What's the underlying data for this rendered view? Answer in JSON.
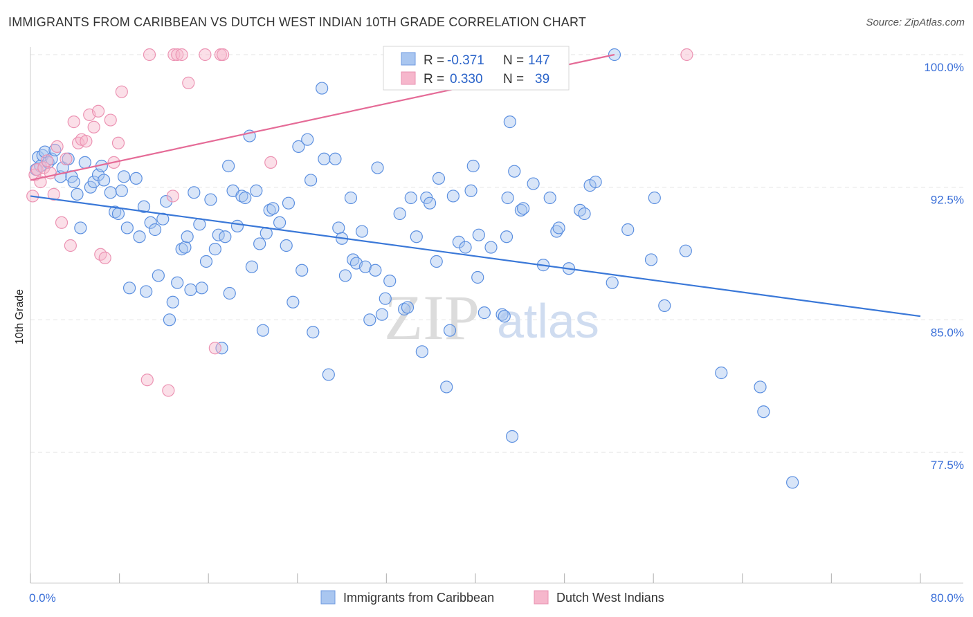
{
  "title": "IMMIGRANTS FROM CARIBBEAN VS DUTCH WEST INDIAN 10TH GRADE CORRELATION CHART",
  "source": "Source: ZipAtlas.com",
  "watermark": {
    "zip": "ZIP",
    "atlas": "atlas"
  },
  "colors": {
    "blue": "#3a78d8",
    "blue_fill": "#a9c6f0",
    "pink": "#e56b97",
    "pink_fill": "#f6b7cc",
    "axis_text": "#3a6fd8",
    "grid": "#e3e3e3"
  },
  "legend": {
    "rows": [
      {
        "r_label": "R = ",
        "r_value": "-0.371",
        "n_label": "N = ",
        "n_value": "147"
      },
      {
        "r_label": "R = ",
        "r_value": "0.330",
        "n_label": "N = ",
        "n_value": "39"
      }
    ]
  },
  "bottom_legend": [
    "Immigrants from Caribbean",
    "Dutch West Indians"
  ],
  "chart_data": {
    "type": "scatter",
    "title": "IMMIGRANTS FROM CARIBBEAN VS DUTCH WEST INDIAN 10TH GRADE CORRELATION CHART",
    "xlabel": "",
    "ylabel": "10th Grade",
    "xlim": [
      0,
      80
    ],
    "ylim": [
      71,
      101.5
    ],
    "x_tick_labels": [
      "0.0%",
      "80.0%"
    ],
    "y_ticks": [
      77.5,
      85.0,
      92.5,
      100.0
    ],
    "y_tick_labels": [
      "77.5%",
      "85.0%",
      "92.5%",
      "100.0%"
    ],
    "grid": "horizontal dashed",
    "legend_position": "top-center",
    "series": [
      {
        "name": "Immigrants from Caribbean",
        "color": "#3a78d8",
        "trend": {
          "x": [
            0,
            80
          ],
          "y": [
            92.0,
            85.2
          ]
        },
        "points": [
          [
            0.5,
            93.5
          ],
          [
            0.7,
            94.2
          ],
          [
            0.9,
            93.7
          ],
          [
            1.1,
            94.3
          ],
          [
            1.3,
            94.5
          ],
          [
            1.6,
            93.9
          ],
          [
            1.9,
            94.1
          ],
          [
            2.2,
            94.6
          ],
          [
            2.7,
            93.1
          ],
          [
            2.9,
            93.6
          ],
          [
            3.4,
            94.1
          ],
          [
            3.7,
            93.1
          ],
          [
            3.9,
            92.8
          ],
          [
            4.2,
            92.1
          ],
          [
            4.5,
            90.2
          ],
          [
            4.9,
            93.9
          ],
          [
            5.4,
            92.5
          ],
          [
            5.7,
            92.8
          ],
          [
            6.1,
            93.2
          ],
          [
            6.4,
            93.7
          ],
          [
            6.6,
            92.9
          ],
          [
            7.2,
            92.2
          ],
          [
            7.6,
            91.1
          ],
          [
            7.9,
            91.0
          ],
          [
            8.2,
            92.3
          ],
          [
            8.4,
            93.1
          ],
          [
            8.7,
            90.2
          ],
          [
            8.9,
            86.8
          ],
          [
            9.5,
            93.0
          ],
          [
            9.8,
            89.7
          ],
          [
            10.2,
            91.4
          ],
          [
            10.4,
            86.6
          ],
          [
            10.8,
            90.5
          ],
          [
            11.2,
            90.1
          ],
          [
            11.5,
            87.5
          ],
          [
            11.9,
            90.7
          ],
          [
            12.2,
            91.7
          ],
          [
            12.5,
            85.0
          ],
          [
            12.8,
            86.0
          ],
          [
            13.2,
            87.1
          ],
          [
            13.6,
            89.0
          ],
          [
            13.9,
            89.1
          ],
          [
            14.1,
            89.7
          ],
          [
            14.4,
            86.7
          ],
          [
            14.7,
            92.2
          ],
          [
            15.2,
            90.4
          ],
          [
            15.4,
            86.8
          ],
          [
            15.8,
            88.3
          ],
          [
            16.2,
            91.8
          ],
          [
            16.6,
            89.0
          ],
          [
            16.9,
            89.8
          ],
          [
            17.2,
            83.4
          ],
          [
            17.5,
            89.7
          ],
          [
            17.8,
            93.7
          ],
          [
            17.9,
            86.5
          ],
          [
            18.2,
            92.3
          ],
          [
            18.6,
            90.3
          ],
          [
            19.0,
            92.0
          ],
          [
            19.3,
            91.9
          ],
          [
            19.7,
            95.4
          ],
          [
            19.9,
            88.0
          ],
          [
            20.3,
            92.3
          ],
          [
            20.6,
            89.3
          ],
          [
            20.9,
            84.4
          ],
          [
            21.2,
            89.9
          ],
          [
            21.5,
            91.2
          ],
          [
            21.8,
            91.3
          ],
          [
            22.4,
            90.5
          ],
          [
            23.0,
            89.2
          ],
          [
            23.2,
            91.6
          ],
          [
            23.6,
            86.0
          ],
          [
            24.1,
            94.8
          ],
          [
            24.4,
            87.8
          ],
          [
            24.9,
            95.2
          ],
          [
            25.2,
            92.9
          ],
          [
            25.4,
            84.3
          ],
          [
            26.2,
            98.1
          ],
          [
            26.4,
            94.1
          ],
          [
            26.8,
            81.9
          ],
          [
            27.4,
            94.1
          ],
          [
            27.7,
            90.2
          ],
          [
            28.0,
            89.6
          ],
          [
            28.3,
            87.5
          ],
          [
            28.8,
            91.9
          ],
          [
            29.0,
            88.4
          ],
          [
            29.3,
            88.2
          ],
          [
            29.8,
            90.0
          ],
          [
            30.1,
            88.0
          ],
          [
            30.5,
            85.0
          ],
          [
            31.0,
            87.8
          ],
          [
            31.2,
            93.6
          ],
          [
            31.6,
            85.3
          ],
          [
            31.9,
            86.2
          ],
          [
            32.3,
            87.2
          ],
          [
            33.2,
            91.0
          ],
          [
            33.6,
            85.6
          ],
          [
            33.9,
            85.7
          ],
          [
            34.2,
            91.9
          ],
          [
            34.7,
            89.7
          ],
          [
            35.2,
            83.2
          ],
          [
            35.6,
            91.9
          ],
          [
            35.9,
            91.6
          ],
          [
            36.5,
            88.3
          ],
          [
            36.7,
            93.0
          ],
          [
            37.4,
            81.2
          ],
          [
            37.7,
            84.4
          ],
          [
            38.0,
            92.0
          ],
          [
            38.5,
            89.4
          ],
          [
            39.1,
            89.1
          ],
          [
            39.6,
            92.3
          ],
          [
            39.8,
            93.7
          ],
          [
            40.2,
            87.4
          ],
          [
            40.3,
            89.8
          ],
          [
            40.8,
            85.4
          ],
          [
            41.4,
            89.1
          ],
          [
            42.4,
            85.3
          ],
          [
            42.6,
            85.2
          ],
          [
            42.8,
            89.7
          ],
          [
            42.9,
            91.9
          ],
          [
            43.1,
            96.2
          ],
          [
            43.3,
            78.4
          ],
          [
            43.5,
            93.4
          ],
          [
            44.1,
            91.2
          ],
          [
            44.3,
            91.3
          ],
          [
            45.2,
            92.7
          ],
          [
            46.1,
            88.1
          ],
          [
            46.7,
            91.9
          ],
          [
            47.3,
            90.0
          ],
          [
            47.5,
            90.2
          ],
          [
            48.4,
            87.9
          ],
          [
            49.4,
            91.2
          ],
          [
            49.8,
            91.0
          ],
          [
            50.3,
            92.6
          ],
          [
            50.8,
            92.8
          ],
          [
            52.3,
            87.1
          ],
          [
            52.5,
            100.0
          ],
          [
            53.7,
            90.1
          ],
          [
            55.8,
            88.4
          ],
          [
            56.1,
            91.9
          ],
          [
            57.0,
            85.8
          ],
          [
            58.9,
            88.9
          ],
          [
            62.1,
            82.0
          ],
          [
            65.6,
            81.2
          ],
          [
            65.9,
            79.8
          ],
          [
            68.5,
            75.8
          ]
        ]
      },
      {
        "name": "Dutch West Indians",
        "color": "#e56b97",
        "trend": {
          "x": [
            0,
            52.5
          ],
          "y": [
            92.9,
            100.0
          ]
        },
        "points": [
          [
            0.2,
            92.0
          ],
          [
            0.4,
            93.2
          ],
          [
            0.6,
            93.5
          ],
          [
            0.9,
            92.8
          ],
          [
            1.2,
            93.6
          ],
          [
            1.5,
            94.0
          ],
          [
            1.8,
            93.3
          ],
          [
            2.1,
            92.1
          ],
          [
            2.4,
            94.8
          ],
          [
            2.8,
            90.5
          ],
          [
            3.2,
            94.1
          ],
          [
            3.6,
            89.2
          ],
          [
            3.9,
            96.2
          ],
          [
            4.3,
            95.0
          ],
          [
            4.6,
            95.2
          ],
          [
            5.0,
            95.1
          ],
          [
            5.3,
            96.6
          ],
          [
            5.7,
            95.9
          ],
          [
            6.1,
            96.8
          ],
          [
            6.3,
            88.7
          ],
          [
            6.7,
            88.5
          ],
          [
            7.2,
            96.3
          ],
          [
            7.5,
            93.9
          ],
          [
            7.9,
            95.0
          ],
          [
            8.2,
            97.9
          ],
          [
            10.5,
            81.6
          ],
          [
            10.7,
            100.0
          ],
          [
            12.4,
            81.0
          ],
          [
            12.8,
            92.0
          ],
          [
            12.9,
            100.0
          ],
          [
            13.2,
            100.0
          ],
          [
            13.6,
            100.0
          ],
          [
            14.2,
            98.4
          ],
          [
            15.7,
            100.0
          ],
          [
            16.6,
            83.4
          ],
          [
            17.1,
            100.0
          ],
          [
            17.3,
            100.0
          ],
          [
            21.6,
            93.9
          ],
          [
            59.0,
            100.0
          ]
        ]
      }
    ]
  }
}
